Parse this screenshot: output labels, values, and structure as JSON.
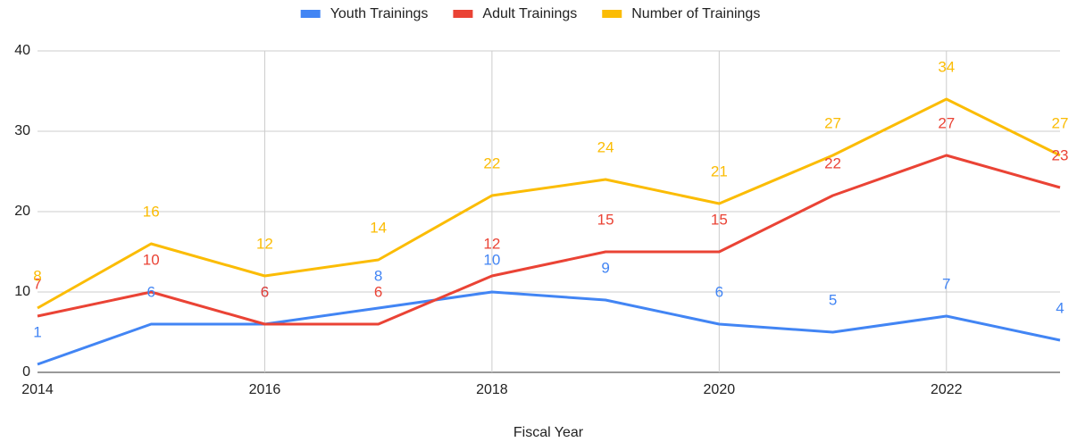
{
  "chart_data": {
    "type": "line",
    "x": [
      2014,
      2015,
      2016,
      2017,
      2018,
      2019,
      2020,
      2021,
      2022,
      2023
    ],
    "series": [
      {
        "name": "Youth Trainings",
        "color": "#4285f4",
        "values": [
          1,
          6,
          6,
          8,
          10,
          9,
          6,
          5,
          7,
          4
        ]
      },
      {
        "name": "Adult Trainings",
        "color": "#ea4335",
        "values": [
          7,
          10,
          6,
          6,
          12,
          15,
          15,
          22,
          27,
          23
        ]
      },
      {
        "name": "Number of Trainings",
        "color": "#fbbc04",
        "values": [
          8,
          16,
          12,
          14,
          22,
          24,
          21,
          27,
          34,
          27
        ]
      }
    ],
    "xlabel": "Fiscal Year",
    "xlim": [
      2014,
      2023
    ],
    "xticks": [
      2014,
      2016,
      2018,
      2020,
      2022
    ],
    "ylim": [
      0,
      40
    ],
    "yticks": [
      0,
      10,
      20,
      30,
      40
    ],
    "grid": true,
    "legend": "top"
  }
}
